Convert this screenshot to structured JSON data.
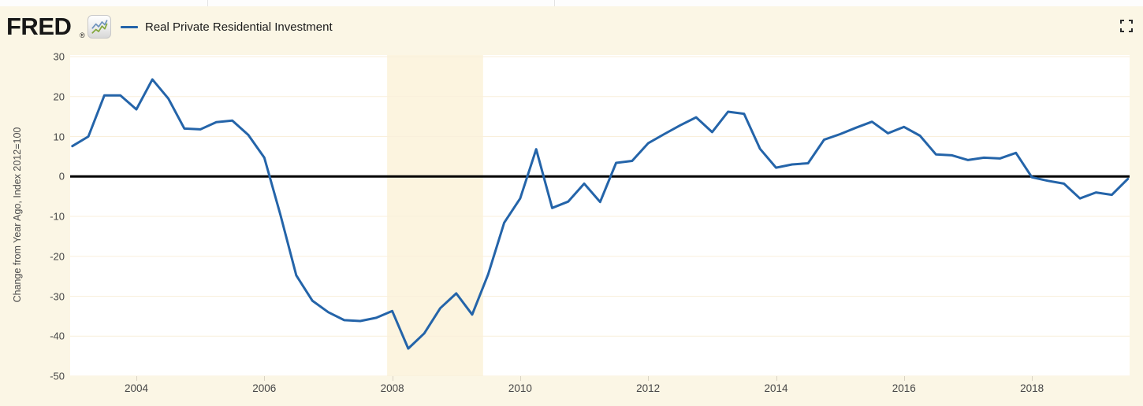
{
  "header": {
    "logo_text": "FRED",
    "registered_mark": "®",
    "legend_label": "Real Private Residential Investment"
  },
  "icons": {
    "logo_chart_icon": "line-chart-icon",
    "fullscreen_icon": "fullscreen-expand-icon"
  },
  "colors": {
    "background": "#fbf6e5",
    "plot_background": "#ffffff",
    "recession_band": "#fcf4df",
    "gridline": "#f9efdb",
    "zero_line": "#000000",
    "series_line": "#2464a9",
    "tick_mark": "#d9d3c3"
  },
  "chart_data": {
    "type": "line",
    "title": "Real Private Residential Investment",
    "xlabel": "",
    "ylabel": "Change from Year Ago, Index 2012=100",
    "ylim": [
      -50,
      30
    ],
    "xlim": [
      2002.96,
      2019.56
    ],
    "y_ticks": [
      30,
      20,
      10,
      0,
      -10,
      -20,
      -30,
      -40,
      -50
    ],
    "y_tick_labels": [
      "30",
      "20",
      "10",
      "0",
      "-10",
      "-20",
      "-30",
      "-40",
      "-50"
    ],
    "x_ticks": [
      2004,
      2006,
      2008,
      2010,
      2012,
      2014,
      2016,
      2018
    ],
    "x_tick_labels": [
      "2004",
      "2006",
      "2008",
      "2010",
      "2012",
      "2014",
      "2016",
      "2018"
    ],
    "grid": true,
    "zero_line": true,
    "legend_position": "top-left",
    "frequency": "quarterly",
    "x_start": 2003.0,
    "x_step": 0.25,
    "recession_bands": [
      {
        "start": 2007.92,
        "end": 2009.42
      }
    ],
    "series": [
      {
        "name": "Real Private Residential Investment",
        "values": [
          7.6,
          10.0,
          20.3,
          20.3,
          16.8,
          24.3,
          19.5,
          12.0,
          11.8,
          13.6,
          14.0,
          10.4,
          4.7,
          -9.5,
          -24.8,
          -31.1,
          -34.0,
          -36.0,
          -36.2,
          -35.4,
          -33.7,
          -43.1,
          -39.3,
          -33.0,
          -29.3,
          -34.6,
          -24.5,
          -11.6,
          -5.5,
          6.8,
          -7.9,
          -6.3,
          -1.8,
          -6.4,
          3.4,
          3.9,
          8.3,
          10.6,
          12.8,
          14.8,
          11.1,
          16.2,
          15.7,
          6.9,
          2.2,
          3.0,
          3.3,
          9.2,
          10.6,
          12.2,
          13.7,
          10.8,
          12.4,
          10.2,
          5.5,
          5.3,
          4.1,
          4.7,
          4.5,
          5.9,
          -0.2,
          -1.1,
          -1.8,
          -5.5,
          -4.0,
          -4.6,
          -0.6
        ]
      }
    ]
  }
}
